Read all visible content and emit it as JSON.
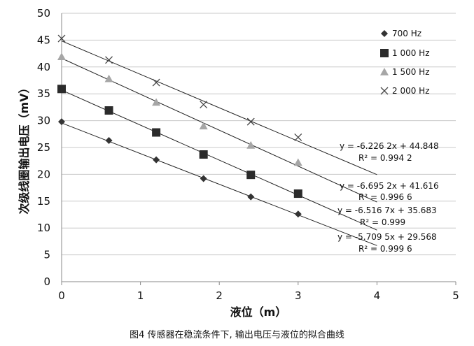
{
  "chart_data": {
    "type": "scatter",
    "xlabel": "液位（m）",
    "ylabel": "次级线圈输出电压（mV）",
    "xlim": [
      0,
      5
    ],
    "ylim": [
      0,
      50
    ],
    "xticks": [
      "0",
      "1",
      "2",
      "3",
      "4",
      "5"
    ],
    "yticks": [
      "0",
      "5",
      "10",
      "15",
      "20",
      "25",
      "30",
      "35",
      "40",
      "45",
      "50"
    ],
    "grid": "horizontal",
    "legend": "top-right",
    "x": [
      0,
      0.6,
      1.2,
      1.8,
      2.4,
      3.0
    ],
    "series": [
      {
        "name": "700 Hz",
        "marker": "diamond",
        "values": [
          29.8,
          26.3,
          22.7,
          19.2,
          15.8,
          12.6
        ],
        "fit": {
          "slope": -5.7095,
          "intercept": 29.568,
          "x_end": 4.0
        },
        "equation": "y = -5.709  5x + 29.568",
        "r2": "R² = 0.999 6"
      },
      {
        "name": "1  000 Hz",
        "marker": "square",
        "values": [
          35.9,
          31.9,
          27.8,
          23.7,
          19.9,
          16.4
        ],
        "fit": {
          "slope": -6.5167,
          "intercept": 35.683,
          "x_end": 4.0
        },
        "equation": "y = -6.516  7x + 35.683",
        "r2": "R² = 0.999"
      },
      {
        "name": "1  500 Hz",
        "marker": "triangle",
        "values": [
          41.9,
          37.8,
          33.4,
          29.0,
          25.4,
          22.2
        ],
        "fit": {
          "slope": -6.6952,
          "intercept": 41.616,
          "x_end": 4.0
        },
        "equation": "y = -6.695  2x + 41.616",
        "r2": "R² = 0.996 6"
      },
      {
        "name": "2  000  Hz",
        "marker": "x",
        "values": [
          45.3,
          41.3,
          37.1,
          33.0,
          29.8,
          26.9
        ],
        "fit": {
          "slope": -6.2262,
          "intercept": 44.848,
          "x_end": 4.0
        },
        "equation": "y = -6.226  2x + 44.848",
        "r2": "R² = 0.994  2"
      }
    ]
  },
  "caption": "图4    传感器在稳流条件下, 输出电压与液位的拟合曲线"
}
